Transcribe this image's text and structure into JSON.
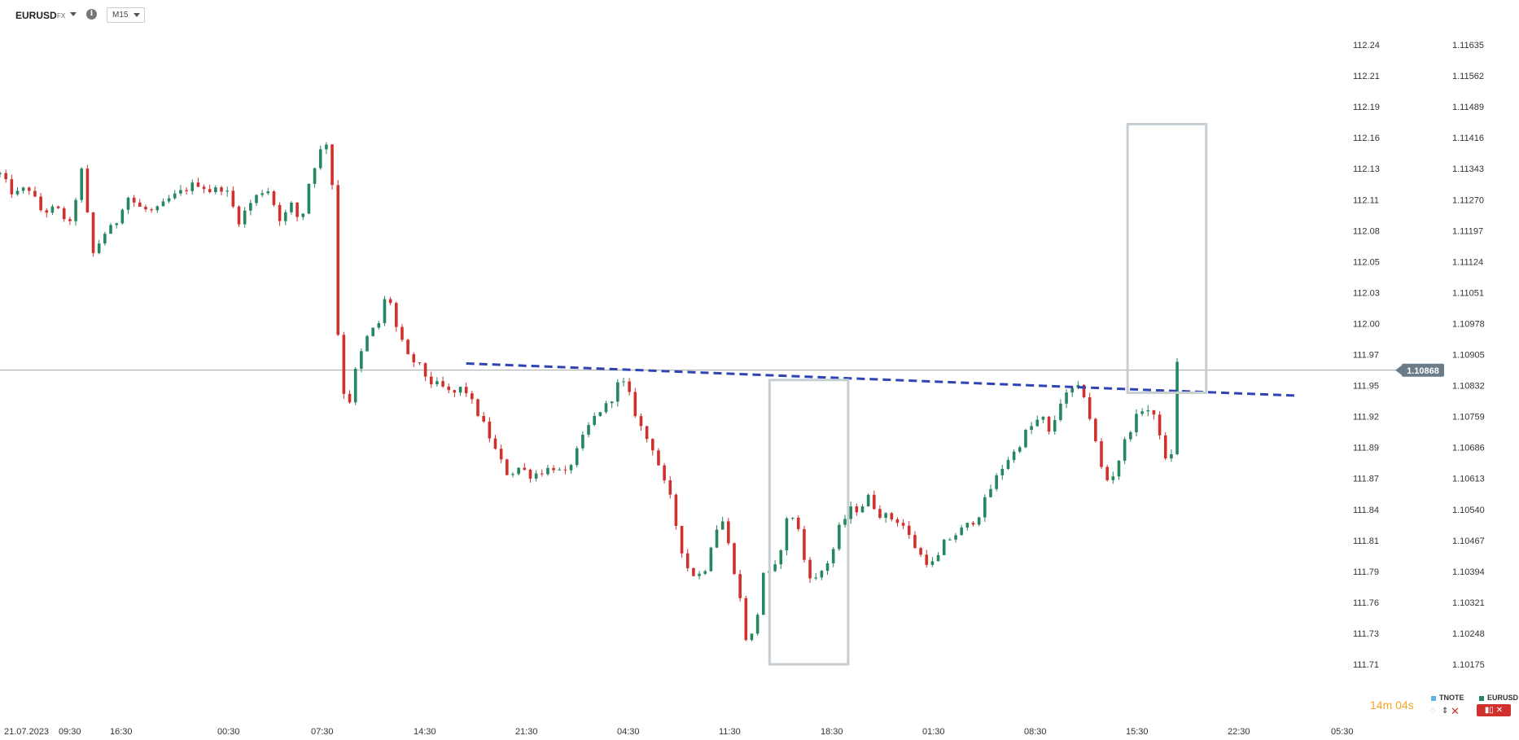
{
  "header": {
    "symbol": "EURUSD",
    "symbol_type": "FX",
    "info_glyph": "i",
    "timeframe": "M15"
  },
  "chart_data": {
    "type": "candlestick",
    "symbol": "EURUSD",
    "timeframe": "M15",
    "y_right_ticks": [
      "1.11635",
      "1.11562",
      "1.11489",
      "1.11416",
      "1.11343",
      "1.11270",
      "1.11197",
      "1.11124",
      "1.11051",
      "1.10978",
      "1.10905",
      "1.10832",
      "1.10759",
      "1.10686",
      "1.10613",
      "1.10540",
      "1.10467",
      "1.10394",
      "1.10321",
      "1.10248",
      "1.10175"
    ],
    "y_left_ticks": [
      "112.24",
      "112.21",
      "112.19",
      "112.16",
      "112.13",
      "112.11",
      "112.08",
      "112.05",
      "112.03",
      "112.00",
      "111.97",
      "111.95",
      "111.92",
      "111.89",
      "111.87",
      "111.84",
      "111.81",
      "111.79",
      "111.76",
      "111.73",
      "111.71"
    ],
    "y_range": [
      1.10175,
      1.11635
    ],
    "x_ticks": [
      "21.07.2023",
      "09:30",
      "16:30",
      "00:30",
      "07:30",
      "14:30",
      "21:30",
      "04:30",
      "11:30",
      "18:30",
      "01:30",
      "08:30",
      "15:30",
      "22:30",
      "05:30"
    ],
    "last_price": "1.10868",
    "last_price_value": 1.10868,
    "neckline": {
      "from": [
        0.332,
        1.10884
      ],
      "to": [
        0.924,
        1.10808
      ]
    },
    "highlight_boxes": [
      {
        "x": [
          0.548,
          0.604
        ],
        "y": [
          1.10175,
          1.10845
        ]
      },
      {
        "x": [
          0.803,
          0.859
        ],
        "y": [
          1.10815,
          1.11448
        ]
      }
    ],
    "candles_anchors": [
      [
        0.0,
        1.1133
      ],
      [
        0.01,
        1.1128
      ],
      [
        0.02,
        1.113
      ],
      [
        0.03,
        1.1124
      ],
      [
        0.04,
        1.1125
      ],
      [
        0.05,
        1.1121
      ],
      [
        0.058,
        1.1134
      ],
      [
        0.066,
        1.1114
      ],
      [
        0.074,
        1.1119
      ],
      [
        0.082,
        1.1121
      ],
      [
        0.09,
        1.1128
      ],
      [
        0.1,
        1.1125
      ],
      [
        0.11,
        1.1124
      ],
      [
        0.12,
        1.1127
      ],
      [
        0.13,
        1.1129
      ],
      [
        0.14,
        1.1131
      ],
      [
        0.15,
        1.1129
      ],
      [
        0.16,
        1.113
      ],
      [
        0.17,
        1.1122
      ],
      [
        0.18,
        1.1127
      ],
      [
        0.19,
        1.113
      ],
      [
        0.2,
        1.1122
      ],
      [
        0.208,
        1.1126
      ],
      [
        0.214,
        1.1121
      ],
      [
        0.22,
        1.1131
      ],
      [
        0.226,
        1.1137
      ],
      [
        0.232,
        1.1141
      ],
      [
        0.236,
        1.1136
      ],
      [
        0.238,
        1.1117
      ],
      [
        0.242,
        1.1085
      ],
      [
        0.248,
        1.1078
      ],
      [
        0.254,
        1.1088
      ],
      [
        0.262,
        1.1095
      ],
      [
        0.27,
        1.1098
      ],
      [
        0.276,
        1.1106
      ],
      [
        0.282,
        1.1097
      ],
      [
        0.29,
        1.109
      ],
      [
        0.298,
        1.1088
      ],
      [
        0.306,
        1.1084
      ],
      [
        0.314,
        1.1083
      ],
      [
        0.322,
        1.1081
      ],
      [
        0.33,
        1.1083
      ],
      [
        0.338,
        1.1078
      ],
      [
        0.346,
        1.1073
      ],
      [
        0.354,
        1.1067
      ],
      [
        0.362,
        1.1062
      ],
      [
        0.37,
        1.1064
      ],
      [
        0.378,
        1.1062
      ],
      [
        0.386,
        1.1063
      ],
      [
        0.394,
        1.1064
      ],
      [
        0.402,
        1.1062
      ],
      [
        0.41,
        1.1067
      ],
      [
        0.418,
        1.1073
      ],
      [
        0.426,
        1.1077
      ],
      [
        0.434,
        1.1079
      ],
      [
        0.442,
        1.1085
      ],
      [
        0.448,
        1.1081
      ],
      [
        0.454,
        1.1075
      ],
      [
        0.46,
        1.1071
      ],
      [
        0.466,
        1.1068
      ],
      [
        0.472,
        1.1061
      ],
      [
        0.478,
        1.1056
      ],
      [
        0.484,
        1.1046
      ],
      [
        0.49,
        1.104
      ],
      [
        0.496,
        1.1038
      ],
      [
        0.502,
        1.104
      ],
      [
        0.508,
        1.1048
      ],
      [
        0.514,
        1.1052
      ],
      [
        0.52,
        1.1044
      ],
      [
        0.526,
        1.1035
      ],
      [
        0.532,
        1.1022
      ],
      [
        0.538,
        1.1026
      ],
      [
        0.544,
        1.104
      ],
      [
        0.55,
        1.1038
      ],
      [
        0.556,
        1.1045
      ],
      [
        0.562,
        1.1054
      ],
      [
        0.568,
        1.105
      ],
      [
        0.574,
        1.104
      ],
      [
        0.58,
        1.1037
      ],
      [
        0.586,
        1.104
      ],
      [
        0.592,
        1.1043
      ],
      [
        0.598,
        1.105
      ],
      [
        0.606,
        1.1054
      ],
      [
        0.612,
        1.1054
      ],
      [
        0.618,
        1.1057
      ],
      [
        0.626,
        1.1053
      ],
      [
        0.634,
        1.1052
      ],
      [
        0.642,
        1.1051
      ],
      [
        0.65,
        1.1046
      ],
      [
        0.658,
        1.1042
      ],
      [
        0.666,
        1.1041
      ],
      [
        0.672,
        1.1046
      ],
      [
        0.68,
        1.1048
      ],
      [
        0.688,
        1.105
      ],
      [
        0.696,
        1.1052
      ],
      [
        0.704,
        1.1058
      ],
      [
        0.712,
        1.1063
      ],
      [
        0.718,
        1.1066
      ],
      [
        0.724,
        1.1068
      ],
      [
        0.73,
        1.1072
      ],
      [
        0.736,
        1.1074
      ],
      [
        0.742,
        1.1076
      ],
      [
        0.748,
        1.1071
      ],
      [
        0.754,
        1.1079
      ],
      [
        0.76,
        1.1081
      ],
      [
        0.766,
        1.1083
      ],
      [
        0.772,
        1.1081
      ],
      [
        0.778,
        1.1073
      ],
      [
        0.784,
        1.1064
      ],
      [
        0.79,
        1.106
      ],
      [
        0.796,
        1.1065
      ],
      [
        0.802,
        1.1071
      ],
      [
        0.808,
        1.1075
      ],
      [
        0.814,
        1.1078
      ],
      [
        0.82,
        1.1077
      ],
      [
        0.826,
        1.1072
      ],
      [
        0.832,
        1.1062
      ],
      [
        0.836,
        1.1072
      ],
      [
        0.838,
        1.1088
      ],
      [
        0.841,
        1.1092
      ]
    ],
    "colors": {
      "up": "#26875f",
      "down": "#d0312d",
      "neckline": "#2f43b2",
      "box": "#c5ced3",
      "priceline": "#888888",
      "last_price_bg": "#6b7c88"
    }
  },
  "footer": {
    "timer": "14m 04s",
    "legend": [
      {
        "name": "TNOTE",
        "color": "#5ab4e5"
      },
      {
        "name": "EURUSD",
        "color": "#26875f"
      }
    ],
    "close_glyph": "✕",
    "panel_button_label": "✕"
  }
}
